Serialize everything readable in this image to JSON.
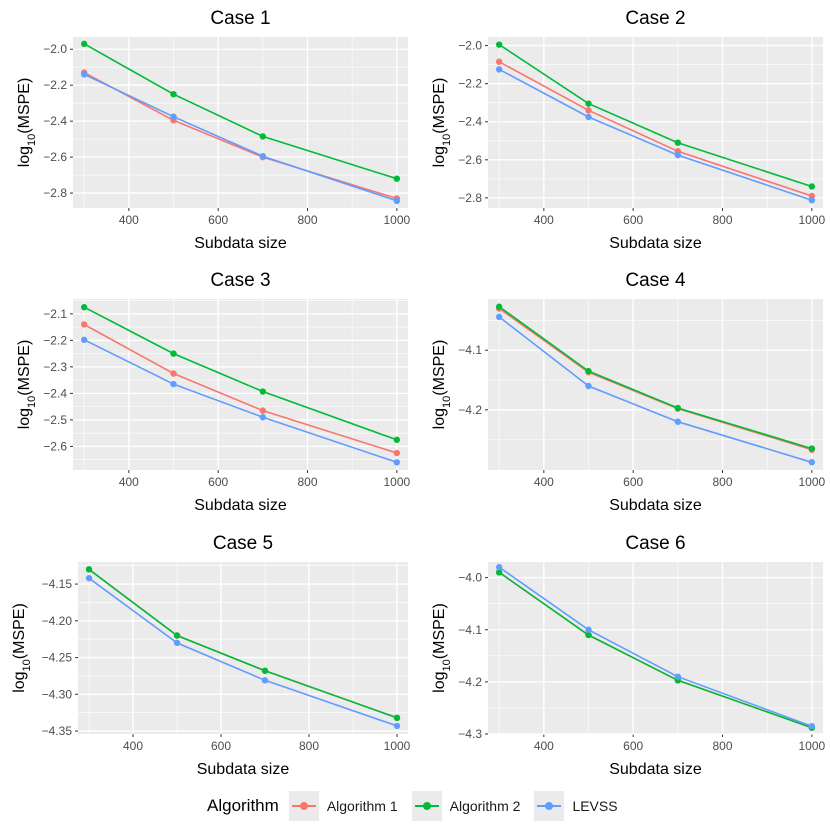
{
  "legend": {
    "title": "Algorithm",
    "items": [
      {
        "label": "Algorithm 1",
        "color": "#F8766D"
      },
      {
        "label": "Algorithm 2",
        "color": "#00BA38"
      },
      {
        "label": "LEVSS",
        "color": "#619CFF"
      }
    ]
  },
  "chart_data": [
    {
      "type": "line",
      "title": "Case 1",
      "xlabel": "Subdata size",
      "ylabel": "log10(MSPE)",
      "x": [
        300,
        500,
        700,
        1000
      ],
      "xticks": [
        400,
        600,
        800,
        1000
      ],
      "xtick_labels": [
        "400",
        "600",
        "800",
        "1000"
      ],
      "yticks": [
        -2.8,
        -2.6,
        -2.4,
        -2.2,
        -2.0
      ],
      "ytick_labels": [
        "-2.8",
        "-2.6",
        "-2.4",
        "-2.2",
        "-2.0"
      ],
      "xlim": [
        275,
        1025
      ],
      "ylim": [
        -2.883,
        -1.932
      ],
      "series": [
        {
          "name": "Algorithm 1",
          "values": [
            -2.13,
            -2.395,
            -2.6,
            -2.83
          ]
        },
        {
          "name": "Algorithm 2",
          "values": [
            -1.97,
            -2.25,
            -2.485,
            -2.72
          ]
        },
        {
          "name": "LEVSS",
          "values": [
            -2.14,
            -2.375,
            -2.595,
            -2.843
          ]
        }
      ]
    },
    {
      "type": "line",
      "title": "Case 2",
      "xlabel": "Subdata size",
      "ylabel": "log10(MSPE)",
      "x": [
        300,
        500,
        700,
        1000
      ],
      "xticks": [
        400,
        600,
        800,
        1000
      ],
      "xtick_labels": [
        "400",
        "600",
        "800",
        "1000"
      ],
      "yticks": [
        -2.8,
        -2.6,
        -2.4,
        -2.2,
        -2.0
      ],
      "ytick_labels": [
        "-2.8",
        "-2.6",
        "-2.4",
        "-2.2",
        "-2.0"
      ],
      "xlim": [
        275,
        1025
      ],
      "ylim": [
        -2.853,
        -1.955
      ],
      "series": [
        {
          "name": "Algorithm 1",
          "values": [
            -2.085,
            -2.34,
            -2.555,
            -2.79
          ]
        },
        {
          "name": "Algorithm 2",
          "values": [
            -1.995,
            -2.305,
            -2.51,
            -2.74
          ]
        },
        {
          "name": "LEVSS",
          "values": [
            -2.125,
            -2.375,
            -2.575,
            -2.812
          ]
        }
      ]
    },
    {
      "type": "line",
      "title": "Case 3",
      "xlabel": "Subdata size",
      "ylabel": "log10(MSPE)",
      "x": [
        300,
        500,
        700,
        1000
      ],
      "xticks": [
        400,
        600,
        800,
        1000
      ],
      "xtick_labels": [
        "400",
        "600",
        "800",
        "1000"
      ],
      "yticks": [
        -2.6,
        -2.5,
        -2.4,
        -2.3,
        -2.2,
        -2.1
      ],
      "ytick_labels": [
        "-2.6",
        "-2.5",
        "-2.4",
        "-2.3",
        "-2.2",
        "-2.1"
      ],
      "xlim": [
        275,
        1025
      ],
      "ylim": [
        -2.689,
        -2.044
      ],
      "series": [
        {
          "name": "Algorithm 1",
          "values": [
            -2.14,
            -2.325,
            -2.465,
            -2.625
          ]
        },
        {
          "name": "Algorithm 2",
          "values": [
            -2.075,
            -2.25,
            -2.393,
            -2.575
          ]
        },
        {
          "name": "LEVSS",
          "values": [
            -2.198,
            -2.365,
            -2.49,
            -2.66
          ]
        }
      ]
    },
    {
      "type": "line",
      "title": "Case 4",
      "xlabel": "Subdata size",
      "ylabel": "log10(MSPE)",
      "x": [
        300,
        500,
        700,
        1000
      ],
      "xticks": [
        400,
        600,
        800,
        1000
      ],
      "xtick_labels": [
        "400",
        "600",
        "800",
        "1000"
      ],
      "yticks": [
        -4.2,
        -4.1
      ],
      "ytick_labels": [
        "-4.2",
        "-4.1"
      ],
      "xlim": [
        275,
        1025
      ],
      "ylim": [
        -4.301,
        -4.014
      ],
      "series": [
        {
          "name": "Algorithm 1",
          "values": [
            -4.03,
            -4.137,
            -4.198,
            -4.267
          ]
        },
        {
          "name": "Algorithm 2",
          "values": [
            -4.027,
            -4.135,
            -4.197,
            -4.265
          ]
        },
        {
          "name": "LEVSS",
          "values": [
            -4.044,
            -4.16,
            -4.22,
            -4.288
          ]
        }
      ]
    },
    {
      "type": "line",
      "title": "Case 5",
      "xlabel": "Subdata size",
      "ylabel": "log10(MSPE)",
      "x": [
        300,
        500,
        700,
        1000
      ],
      "xticks": [
        400,
        600,
        800,
        1000
      ],
      "xtick_labels": [
        "400",
        "600",
        "800",
        "1000"
      ],
      "yticks": [
        -4.35,
        -4.3,
        -4.25,
        -4.2,
        -4.15
      ],
      "ytick_labels": [
        "-4.35",
        "-4.30",
        "-4.25",
        "-4.20",
        "-4.15"
      ],
      "xlim": [
        275,
        1025
      ],
      "ylim": [
        -4.354,
        -4.12
      ],
      "series": [
        {
          "name": "Algorithm 1",
          "values": [
            -4.13,
            -4.22,
            -4.268,
            -4.332
          ]
        },
        {
          "name": "Algorithm 2",
          "values": [
            -4.13,
            -4.22,
            -4.268,
            -4.332
          ]
        },
        {
          "name": "LEVSS",
          "values": [
            -4.142,
            -4.23,
            -4.281,
            -4.343
          ]
        }
      ]
    },
    {
      "type": "line",
      "title": "Case 6",
      "xlabel": "Subdata size",
      "ylabel": "log10(MSPE)",
      "x": [
        300,
        500,
        700,
        1000
      ],
      "xticks": [
        400,
        600,
        800,
        1000
      ],
      "xtick_labels": [
        "400",
        "600",
        "800",
        "1000"
      ],
      "yticks": [
        -4.3,
        -4.2,
        -4.1,
        -4.0
      ],
      "ytick_labels": [
        "-4.3",
        "-4.2",
        "-4.1",
        "-4.0"
      ],
      "xlim": [
        275,
        1025
      ],
      "ylim": [
        -4.3,
        -3.97
      ],
      "series": [
        {
          "name": "Algorithm 1",
          "values": [
            -3.99,
            -4.11,
            -4.197,
            -4.288
          ]
        },
        {
          "name": "Algorithm 2",
          "values": [
            -3.99,
            -4.11,
            -4.197,
            -4.288
          ]
        },
        {
          "name": "LEVSS",
          "values": [
            -3.98,
            -4.1,
            -4.19,
            -4.285
          ]
        }
      ]
    }
  ]
}
